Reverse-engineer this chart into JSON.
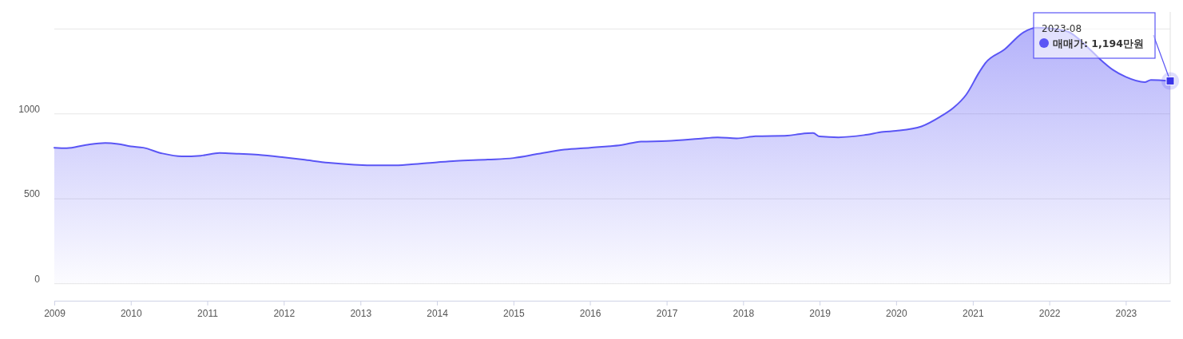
{
  "chart_data": {
    "type": "area",
    "x": [
      "2009-01",
      "2009-03",
      "2009-06",
      "2009-09",
      "2009-11",
      "2010-01",
      "2010-03",
      "2010-06",
      "2010-09",
      "2010-12",
      "2011-03",
      "2011-06",
      "2011-09",
      "2012-01",
      "2012-04",
      "2012-08",
      "2012-12",
      "2013-04",
      "2013-06",
      "2013-09",
      "2014-01",
      "2014-04",
      "2014-09",
      "2015-01",
      "2015-05",
      "2015-09",
      "2016-01",
      "2016-06",
      "2016-09",
      "2017-01",
      "2017-06",
      "2017-09",
      "2017-12",
      "2018-03",
      "2018-08",
      "2018-10",
      "2018-12",
      "2019-01",
      "2019-04",
      "2019-08",
      "2019-11",
      "2020-01",
      "2020-05",
      "2020-08",
      "2020-10",
      "2020-12",
      "2021-02",
      "2021-03",
      "2021-06",
      "2021-09",
      "2021-11",
      "2022-01",
      "2022-04",
      "2022-07",
      "2022-09",
      "2022-11",
      "2023-01",
      "2023-04",
      "2023-05",
      "2023-08"
    ],
    "series": [
      {
        "color": "#5a55f5",
        "values": [
          801,
          798,
          817,
          829,
          823,
          809,
          801,
          767,
          750,
          754,
          770,
          765,
          759,
          744,
          731,
          712,
          701,
          697,
          697,
          703,
          715,
          723,
          731,
          740,
          765,
          790,
          801,
          817,
          837,
          840,
          853,
          862,
          856,
          868,
          872,
          882,
          887,
          867,
          862,
          875,
          894,
          900,
          926,
          985,
          1036,
          1114,
          1246,
          1298,
          1379,
          1481,
          1507,
          1504,
          1484,
          1395,
          1321,
          1259,
          1218,
          1187,
          1200,
          1194
        ]
      }
    ],
    "xlim": [
      "2009-01",
      "2023-08"
    ],
    "xticks": [
      {
        "value": "2009-01",
        "label": "2009"
      },
      {
        "value": "2010-01",
        "label": "2010"
      },
      {
        "value": "2011-01",
        "label": "2011"
      },
      {
        "value": "2012-01",
        "label": "2012"
      },
      {
        "value": "2013-01",
        "label": "2013"
      },
      {
        "value": "2014-01",
        "label": "2014"
      },
      {
        "value": "2015-01",
        "label": "2015"
      },
      {
        "value": "2016-01",
        "label": "2016"
      },
      {
        "value": "2017-01",
        "label": "2017"
      },
      {
        "value": "2018-01",
        "label": "2018"
      },
      {
        "value": "2019-01",
        "label": "2019"
      },
      {
        "value": "2020-01",
        "label": "2020"
      },
      {
        "value": "2021-01",
        "label": "2021"
      },
      {
        "value": "2022-01",
        "label": "2022"
      },
      {
        "value": "2023-01",
        "label": "2023"
      }
    ],
    "ylim": [
      -100,
      1600
    ],
    "yticks": [
      0,
      500,
      1000,
      {
        "value": 1500,
        "label": null
      }
    ],
    "grid": "y",
    "annotations": [
      "2023-08",
      {
        "text": "매매가: 1,194만원",
        "x": "2023-08",
        "y": 1194
      }
    ]
  }
}
